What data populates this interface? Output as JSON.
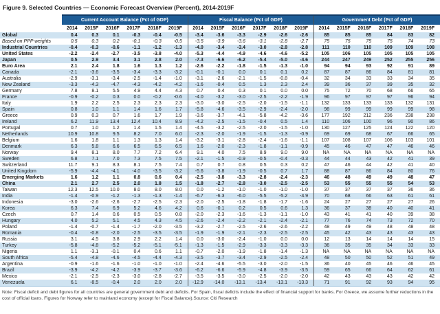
{
  "title": "Figure 9. Selected Countries — Economic Forecast Overview (Percent), 2014-2019F",
  "note": "Note: Fiscal deficit and debt figures for all countries are general government debt and deficits. For Spain, fiscal deficits include the effect of financial support for banks. For Greece, we assume further reductions in the cost of official loans. Figures for Norway refer to mainland economy (except for Fiscal Balance).Source: Citi Research",
  "colors": {
    "header_band": "#1d5c96",
    "header_band_top": "#0e3a66",
    "stripe": "#cfe3f1",
    "text": "#1a1a1a"
  },
  "chart_data": {
    "type": "table",
    "title": "Figure 9. Selected Countries — Economic Forecast Overview (Percent), 2014-2019F",
    "group_headers": [
      "Current Account Balance (Pct of GDP)",
      "Fiscal Balance (Pct of GDP)",
      "Government Debt (Pct of GDP)"
    ],
    "years": [
      "2014",
      "2015F",
      "2016F",
      "2017F",
      "2018F",
      "2019F"
    ],
    "rows": [
      {
        "name": "Global",
        "style": "bold",
        "ca": [
          "0.4",
          "0.3",
          "0.1",
          "-0.3",
          "-0.4",
          "-0.5"
        ],
        "fb": [
          "-3.4",
          "-3.6",
          "-3.3",
          "-2.9",
          "-2.6",
          "-2.6"
        ],
        "gd": [
          "85",
          "85",
          "85",
          "84",
          "83",
          "82"
        ]
      },
      {
        "name": "Based on PPP weights",
        "style": "italic",
        "ca": [
          "0.5",
          "0.3",
          "0.2",
          "-0.1",
          "-0.3",
          "-0.5"
        ],
        "fb": [
          "-3.5",
          "-3.9",
          "-3.6",
          "-3.1",
          "-2.8",
          "-2.7"
        ],
        "gd": [
          "75",
          "75",
          "75",
          "75",
          "74",
          "73"
        ]
      },
      {
        "name": "Industrial Countries",
        "style": "bold",
        "ca": [
          "-0.4",
          "-0.3",
          "-0.6",
          "-1.1",
          "-1.2",
          "-1.3"
        ],
        "fb": [
          "-4.0",
          "-3.4",
          "-3.4",
          "-3.0",
          "-2.8",
          "-2.8"
        ],
        "gd": [
          "111",
          "110",
          "110",
          "109",
          "109",
          "108"
        ]
      },
      {
        "name": "United States",
        "style": "bold",
        "ca": [
          "-2.2",
          "-2.4",
          "-2.7",
          "-3.5",
          "-3.8",
          "-4.0"
        ],
        "fb": [
          "-5.3",
          "-4.4",
          "-4.9",
          "-4.6",
          "-4.6",
          "-5.2"
        ],
        "gd": [
          "105",
          "106",
          "105",
          "105",
          "105",
          "105"
        ]
      },
      {
        "name": "Japan",
        "style": "bold",
        "ca": [
          "0.5",
          "2.9",
          "3.4",
          "3.1",
          "2.8",
          "2.0"
        ],
        "fb": [
          "-7.3",
          "-6.6",
          "-6.2",
          "-5.4",
          "-5.0",
          "-4.6"
        ],
        "gd": [
          "244",
          "247",
          "249",
          "252",
          "255",
          "256"
        ]
      },
      {
        "name": "Euro Area",
        "style": "bold",
        "ca": [
          "2.1",
          "2.4",
          "1.8",
          "1.6",
          "1.3",
          "1.2"
        ],
        "fb": [
          "-2.6",
          "-2.2",
          "-1.8",
          "-1.5",
          "-1.3",
          "-1.0"
        ],
        "gd": [
          "94",
          "94",
          "93",
          "92",
          "91",
          "89"
        ]
      },
      {
        "name": "Canada",
        "style": "normal",
        "ca": [
          "-2.1",
          "-3.6",
          "-3.5",
          "-3.4",
          "-3.3",
          "-3.2"
        ],
        "fb": [
          "-0.1",
          "-0.1",
          "0.0",
          "0.1",
          "0.1",
          "0.2"
        ],
        "gd": [
          "87",
          "87",
          "86",
          "84",
          "81",
          "81"
        ]
      },
      {
        "name": "Australia",
        "style": "normal",
        "ca": [
          "-2.9",
          "-3.1",
          "-3.4",
          "-2.5",
          "-1.4",
          "-1.0"
        ],
        "fb": [
          "-3.1",
          "-2.6",
          "-2.1",
          "-1.5",
          "-0.8",
          "-0.4"
        ],
        "gd": [
          "32",
          "34",
          "33",
          "33",
          "34",
          "35"
        ]
      },
      {
        "name": "New Zealand",
        "style": "normal",
        "ca": [
          "-3.3",
          "-4.3",
          "-4.7",
          "-4.3",
          "-4.2",
          "-4.2"
        ],
        "fb": [
          "-1.6",
          "-0.4",
          "0.5",
          "1.3",
          "2.3",
          "2.4"
        ],
        "gd": [
          "39",
          "36",
          "37",
          "39",
          "35",
          "32"
        ]
      },
      {
        "name": "Germany",
        "style": "normal",
        "ca": [
          "7.8",
          "8.1",
          "5.5",
          "4.9",
          "4.4",
          "4.3"
        ],
        "fb": [
          "0.7",
          "0.4",
          "0.3",
          "0.1",
          "0.0",
          "0.0"
        ],
        "gd": [
          "75",
          "72",
          "70",
          "68",
          "66",
          "65"
        ]
      },
      {
        "name": "France",
        "style": "normal",
        "ca": [
          "-0.9",
          "-0.2",
          "0.3",
          "0.0",
          "-0.2",
          "-0.6"
        ],
        "fb": [
          "-4.0",
          "-3.2",
          "-3.0",
          "-2.5",
          "-2.2",
          "-1.9"
        ],
        "gd": [
          "96",
          "97",
          "97",
          "97",
          "96",
          "94"
        ]
      },
      {
        "name": "Italy",
        "style": "normal",
        "ca": [
          "1.9",
          "2.2",
          "2.5",
          "2.3",
          "2.3",
          "2.3"
        ],
        "fb": [
          "-3.0",
          "-3.0",
          "-2.5",
          "-2.0",
          "-1.5",
          "-1.1"
        ],
        "gd": [
          "132",
          "133",
          "133",
          "133",
          "132",
          "131"
        ]
      },
      {
        "name": "Spain",
        "style": "normal",
        "ca": [
          "0.8",
          "1.0",
          "1.1",
          "1.4",
          "1.6",
          "1.7"
        ],
        "fb": [
          "-5.8",
          "-4.6",
          "-3.5",
          "-2.9",
          "-2.4",
          "-2.0"
        ],
        "gd": [
          "98",
          "99",
          "99",
          "99",
          "99",
          "98"
        ]
      },
      {
        "name": "Greece",
        "style": "normal",
        "ca": [
          "0.9",
          "0.3",
          "0.7",
          "1.6",
          "1.7",
          "1.9"
        ],
        "fb": [
          "-3.6",
          "-3.7",
          "-4.1",
          "-5.8",
          "-4.2",
          "-3.6"
        ],
        "gd": [
          "177",
          "192",
          "212",
          "236",
          "238",
          "238"
        ]
      },
      {
        "name": "Ireland",
        "style": "normal",
        "ca": [
          "6.2",
          "11.9",
          "13.4",
          "12.4",
          "10.4",
          "8.9"
        ],
        "fb": [
          "-4.2",
          "-2.5",
          "-1.5",
          "-0.4",
          "0.5",
          "1.4"
        ],
        "gd": [
          "110",
          "106",
          "100",
          "96",
          "90",
          "86"
        ]
      },
      {
        "name": "Portugal",
        "style": "normal",
        "ca": [
          "0.7",
          "1.0",
          "1.2",
          "1.4",
          "1.5",
          "1.4"
        ],
        "fb": [
          "-4.5",
          "-3.2",
          "-2.5",
          "-2.0",
          "-1.5",
          "-1.0"
        ],
        "gd": [
          "130",
          "127",
          "125",
          "124",
          "122",
          "120"
        ]
      },
      {
        "name": "Netherlands",
        "style": "normal",
        "ca": [
          "10.9",
          "10.8",
          "9.5",
          "8.2",
          "7.0",
          "6.0"
        ],
        "fb": [
          "-2.3",
          "-2.0",
          "-1.9",
          "-1.5",
          "-1.3",
          "-0.9"
        ],
        "gd": [
          "69",
          "69",
          "68",
          "67",
          "66",
          "65"
        ]
      },
      {
        "name": "Belgium",
        "style": "normal",
        "ca": [
          "1.6",
          "1.8",
          "1.1",
          "1.3",
          "1.3",
          "1.4"
        ],
        "fb": [
          "-3.2",
          "-3.1",
          "-2.8",
          "-2.4",
          "-1.6",
          "-1.1"
        ],
        "gd": [
          "107",
          "108",
          "107",
          "106",
          "103",
          "101"
        ]
      },
      {
        "name": "Denmark",
        "style": "normal",
        "ca": [
          "6.3",
          "5.8",
          "6.6",
          "6.5",
          "6.5",
          "6.5"
        ],
        "fb": [
          "1.6",
          "-2.0",
          "-2.3",
          "-1.8",
          "-1.1",
          "-0.9"
        ],
        "gd": [
          "45",
          "46",
          "47",
          "47",
          "46",
          "46"
        ]
      },
      {
        "name": "Norway",
        "style": "normal",
        "ca": [
          "9.4",
          "8.1",
          "8.0",
          "7.7",
          "7.2",
          "6.4"
        ],
        "fb": [
          "9.1",
          "4.0",
          "7.5",
          "8.9",
          "9.0",
          "9.0"
        ],
        "gd": [
          "NA",
          "NA",
          "NA",
          "NA",
          "NA",
          "NA"
        ]
      },
      {
        "name": "Sweden",
        "style": "normal",
        "ca": [
          "6.8",
          "7.1",
          "7.0",
          "7.3",
          "7.5",
          "7.5"
        ],
        "fb": [
          "-2.1",
          "-1.5",
          "-0.9",
          "-0.5",
          "-0.4",
          "-0.3"
        ],
        "gd": [
          "44",
          "44",
          "43",
          "42",
          "41",
          "39"
        ]
      },
      {
        "name": "Switzerland",
        "style": "normal",
        "ca": [
          "11.7",
          "9.1",
          "8.3",
          "8.1",
          "7.5",
          "7.4"
        ],
        "fb": [
          "0.7",
          "0.7",
          "0.8",
          "0.5",
          "0.3",
          "0.2"
        ],
        "gd": [
          "47",
          "46",
          "44",
          "42",
          "41",
          "40"
        ]
      },
      {
        "name": "United Kingdom",
        "style": "normal",
        "ca": [
          "-5.9",
          "-4.4",
          "-4.1",
          "-4.0",
          "-3.5",
          "-3.2"
        ],
        "fb": [
          "-5.6",
          "-3.8",
          "-1.9",
          "-0.5",
          "0.7",
          "1.7"
        ],
        "gd": [
          "88",
          "87",
          "86",
          "84",
          "80",
          "76"
        ]
      },
      {
        "name": "Emerging Markets",
        "style": "bold",
        "ca": [
          "1.6",
          "1.2",
          "1.1",
          "0.8",
          "0.6",
          "0.4"
        ],
        "fb": [
          "-2.5",
          "-3.8",
          "-3.3",
          "-2.8",
          "-2.4",
          "-2.3"
        ],
        "gd": [
          "46",
          "48",
          "49",
          "49",
          "48",
          "47"
        ]
      },
      {
        "name": "China",
        "style": "bold",
        "ca": [
          "2.1",
          "2.7",
          "2.5",
          "2.0",
          "1.8",
          "1.5"
        ],
        "fb": [
          "-1.8",
          "-2.7",
          "-2.8",
          "-3.0",
          "-2.5",
          "-2.5"
        ],
        "gd": [
          "53",
          "55",
          "55",
          "55",
          "54",
          "53"
        ]
      },
      {
        "name": "Taiwan",
        "style": "normal",
        "ca": [
          "12.3",
          "12.5",
          "10.0",
          "8.0",
          "8.0",
          "8.0"
        ],
        "fb": [
          "0.0",
          "-1.2",
          "-1.0",
          "-1.0",
          "-1.0",
          "-1.0"
        ],
        "gd": [
          "37",
          "37",
          "37",
          "37",
          "36",
          "36"
        ]
      },
      {
        "name": "India",
        "style": "normal",
        "ca": [
          "-1.4",
          "-0.9",
          "-1.2",
          "-1.3",
          "-1.3",
          "-1.4"
        ],
        "fb": [
          "-6.7",
          "-6.3",
          "-6.0",
          "-5.5",
          "-5.2",
          "-4.9"
        ],
        "gd": [
          "70",
          "68",
          "66",
          "63",
          "61",
          "61"
        ]
      },
      {
        "name": "Indonesia",
        "style": "normal",
        "ca": [
          "-3.0",
          "-2.6",
          "-2.6",
          "-2.7",
          "-2.5",
          "-2.3"
        ],
        "fb": [
          "-2.0",
          "-2.5",
          "-1.8",
          "-1.8",
          "-1.7",
          "-1.6"
        ],
        "gd": [
          "24",
          "27",
          "27",
          "27",
          "27",
          "26"
        ]
      },
      {
        "name": "Korea",
        "style": "normal",
        "ca": [
          "6.3",
          "7.4",
          "6.9",
          "5.2",
          "4.6",
          "4.2"
        ],
        "fb": [
          "0.6",
          "-0.1",
          "0.2",
          "0.5",
          "0.6",
          "1.3"
        ],
        "gd": [
          "36",
          "37",
          "38",
          "40",
          "40",
          "41"
        ]
      },
      {
        "name": "Czech",
        "style": "normal",
        "ca": [
          "0.7",
          "1.4",
          "0.6",
          "0.5",
          "0.5",
          "0.8"
        ],
        "fb": [
          "-2.0",
          "-2.3",
          "-1.6",
          "-1.3",
          "-1.1",
          "-1.0"
        ],
        "gd": [
          "43",
          "41",
          "41",
          "40",
          "39",
          "38"
        ]
      },
      {
        "name": "Hungary",
        "style": "normal",
        "ca": [
          "4.0",
          "5.2",
          "5.1",
          "4.5",
          "4.3",
          "4.5"
        ],
        "fb": [
          "-2.6",
          "-2.4",
          "-2.2",
          "-2.1",
          "-2.4",
          "-2.1"
        ],
        "gd": [
          "77",
          "76",
          "74",
          "73",
          "72",
          "70"
        ]
      },
      {
        "name": "Poland",
        "style": "normal",
        "ca": [
          "-1.4",
          "-0.7",
          "-1.4",
          "-1.7",
          "-2.0",
          "-3.5"
        ],
        "fb": [
          "-3.2",
          "-2.7",
          "-2.5",
          "-2.6",
          "-2.6",
          "-2.2"
        ],
        "gd": [
          "48",
          "49",
          "49",
          "48",
          "48",
          "48"
        ]
      },
      {
        "name": "Romania",
        "style": "normal",
        "ca": [
          "-0.4",
          "-0.8",
          "-2.0",
          "-2.5",
          "-3.5",
          "-3.5"
        ],
        "fb": [
          "-1.9",
          "-1.9",
          "-2.1",
          "-2.3",
          "-2.5",
          "-2.5"
        ],
        "gd": [
          "45",
          "42",
          "43",
          "43",
          "43",
          "43"
        ]
      },
      {
        "name": "Russia",
        "style": "normal",
        "ca": [
          "3.1",
          "4.5",
          "3.8",
          "2.9",
          "2.2",
          "1.4"
        ],
        "fb": [
          "0.0",
          "-3.0",
          "-2.4",
          "-1.0",
          "0.0",
          "0.0"
        ],
        "gd": [
          "12",
          "13",
          "14",
          "14",
          "14",
          "15"
        ]
      },
      {
        "name": "Turkey",
        "style": "normal",
        "ca": [
          "-5.8",
          "-4.8",
          "-5.2",
          "-5.2",
          "-5.1",
          "-5.1"
        ],
        "fb": [
          "-1.3",
          "-1.5",
          "-2.9",
          "-3.3",
          "-3.3",
          "-3.3"
        ],
        "gd": [
          "36",
          "35",
          "35",
          "34",
          "33",
          "33"
        ]
      },
      {
        "name": "Nigeria",
        "style": "normal",
        "ca": [
          "1.1",
          "-3.1",
          "-0.1",
          "0.4",
          "0.6",
          "1.1"
        ],
        "fb": [
          "-0.7",
          "-2.0",
          "-1.9",
          "-1.8",
          "-1.4",
          "-1.3"
        ],
        "gd": [
          "NA",
          "NA",
          "NA",
          "NA",
          "NA",
          "NA"
        ]
      },
      {
        "name": "South Africa",
        "style": "normal",
        "ca": [
          "-5.4",
          "-4.8",
          "-4.6",
          "-4.5",
          "-4.4",
          "-4.3"
        ],
        "fb": [
          "-3.5",
          "-3.7",
          "-3.4",
          "-2.9",
          "-2.5",
          "-2.4"
        ],
        "gd": [
          "48",
          "50",
          "50",
          "52",
          "51",
          "49"
        ]
      },
      {
        "name": "Argentina",
        "style": "normal",
        "ca": [
          "-0.9",
          "-1.6",
          "-1.6",
          "-1.0",
          "-1.0",
          "-1.0"
        ],
        "fb": [
          "-2.4",
          "-4.6",
          "-5.5",
          "-3.0",
          "-2.0",
          "-1.5"
        ],
        "gd": [
          "36",
          "40",
          "45",
          "46",
          "46",
          "45"
        ]
      },
      {
        "name": "Brazil",
        "style": "normal",
        "ca": [
          "-3.9",
          "-4.2",
          "-4.2",
          "-3.9",
          "-3.7",
          "-3.6"
        ],
        "fb": [
          "-6.2",
          "-6.6",
          "-5.9",
          "-4.8",
          "-3.9",
          "-3.5"
        ],
        "gd": [
          "59",
          "65",
          "66",
          "64",
          "62",
          "61"
        ]
      },
      {
        "name": "Mexico",
        "style": "normal",
        "ca": [
          "-2.1",
          "-2.5",
          "-2.3",
          "-3.0",
          "-2.8",
          "-2.7"
        ],
        "fb": [
          "-3.5",
          "-3.5",
          "-3.0",
          "-2.5",
          "-2.0",
          "-2.0"
        ],
        "gd": [
          "42",
          "43",
          "43",
          "43",
          "42",
          "42"
        ]
      },
      {
        "name": "Venezuela",
        "style": "normal",
        "ca": [
          "6.1",
          "-8.5",
          "-0.4",
          "2.0",
          "2.0",
          "2.0"
        ],
        "fb": [
          "-12.9",
          "-14.0",
          "-13.1",
          "-13.4",
          "-13.1",
          "-13.3"
        ],
        "gd": [
          "71",
          "91",
          "92",
          "93",
          "94",
          "95"
        ]
      }
    ]
  }
}
